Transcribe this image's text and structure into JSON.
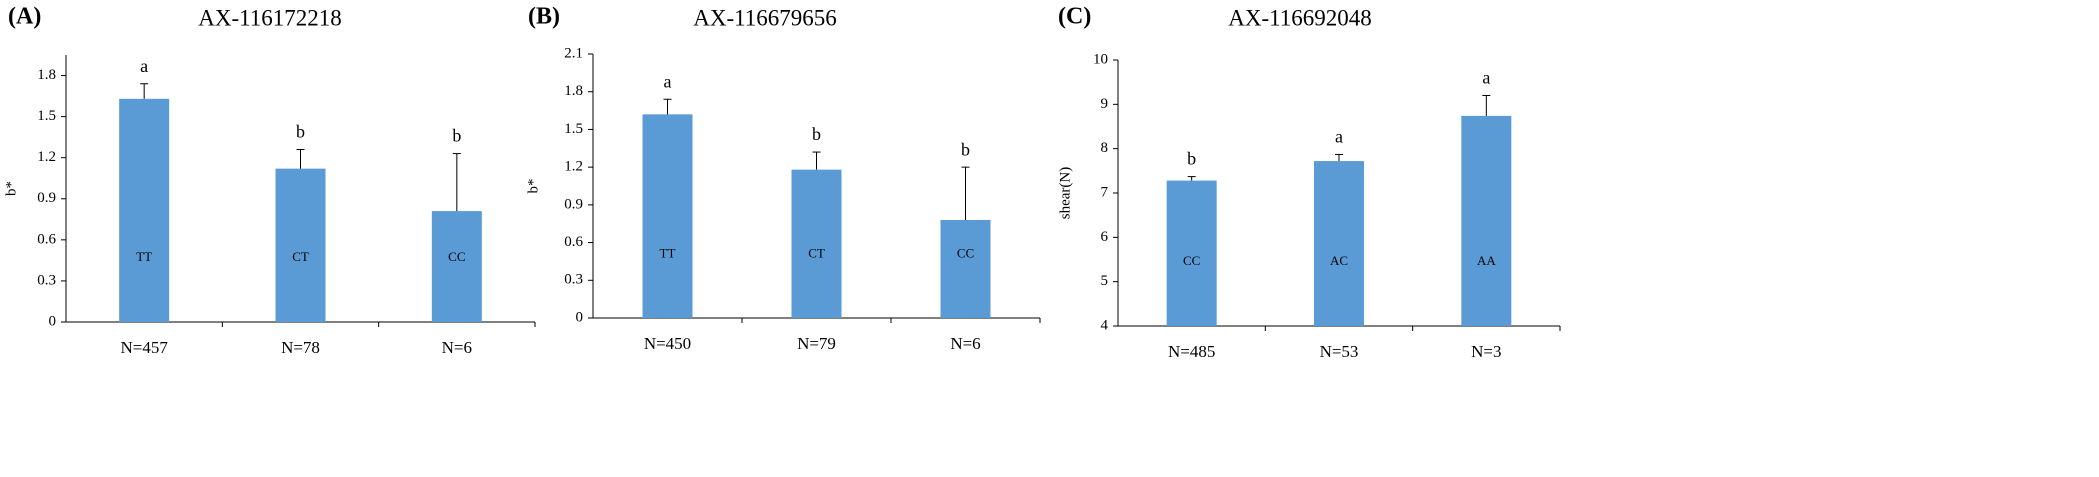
{
  "chart_data": [
    {
      "type": "bar",
      "panel_label": "(A)",
      "title": "AX-116172218",
      "y_label": "b*",
      "categories": [
        "N=457",
        "N=78",
        "N=6"
      ],
      "values": [
        1.63,
        1.12,
        0.81
      ],
      "errors": [
        0.11,
        0.14,
        0.42
      ],
      "letters": [
        "a",
        "b",
        "b"
      ],
      "genotypes": [
        "TT",
        "CT",
        "CC"
      ],
      "color": "#5b9bd5",
      "ylim": [
        0,
        1.95
      ],
      "yticks": [
        0,
        0.3,
        0.6,
        0.9,
        1.2,
        1.5,
        1.8
      ]
    },
    {
      "type": "bar",
      "panel_label": "(B)",
      "title": "AX-116679656",
      "y_label": "b*",
      "categories": [
        "N=450",
        "N=79",
        "N=6"
      ],
      "values": [
        1.62,
        1.18,
        0.78
      ],
      "errors": [
        0.12,
        0.14,
        0.42
      ],
      "letters": [
        "a",
        "b",
        "b"
      ],
      "genotypes": [
        "TT",
        "CT",
        "CC"
      ],
      "color": "#5b9bd5",
      "ylim": [
        0,
        2.1
      ],
      "yticks": [
        0,
        0.3,
        0.6,
        0.9,
        1.2,
        1.5,
        1.8,
        2.1
      ]
    },
    {
      "type": "bar",
      "panel_label": "(C)",
      "title": "AX-116692048",
      "y_label": "shear(N)",
      "categories": [
        "N=485",
        "N=53",
        "N=3"
      ],
      "values": [
        7.28,
        7.72,
        8.74
      ],
      "errors": [
        0.09,
        0.15,
        0.46
      ],
      "letters": [
        "b",
        "a",
        "a"
      ],
      "genotypes": [
        "CC",
        "AC",
        "AA"
      ],
      "color": "#5b9bd5",
      "ylim": [
        4,
        10
      ],
      "yticks": [
        4,
        5,
        6,
        7,
        8,
        9,
        10
      ]
    }
  ]
}
